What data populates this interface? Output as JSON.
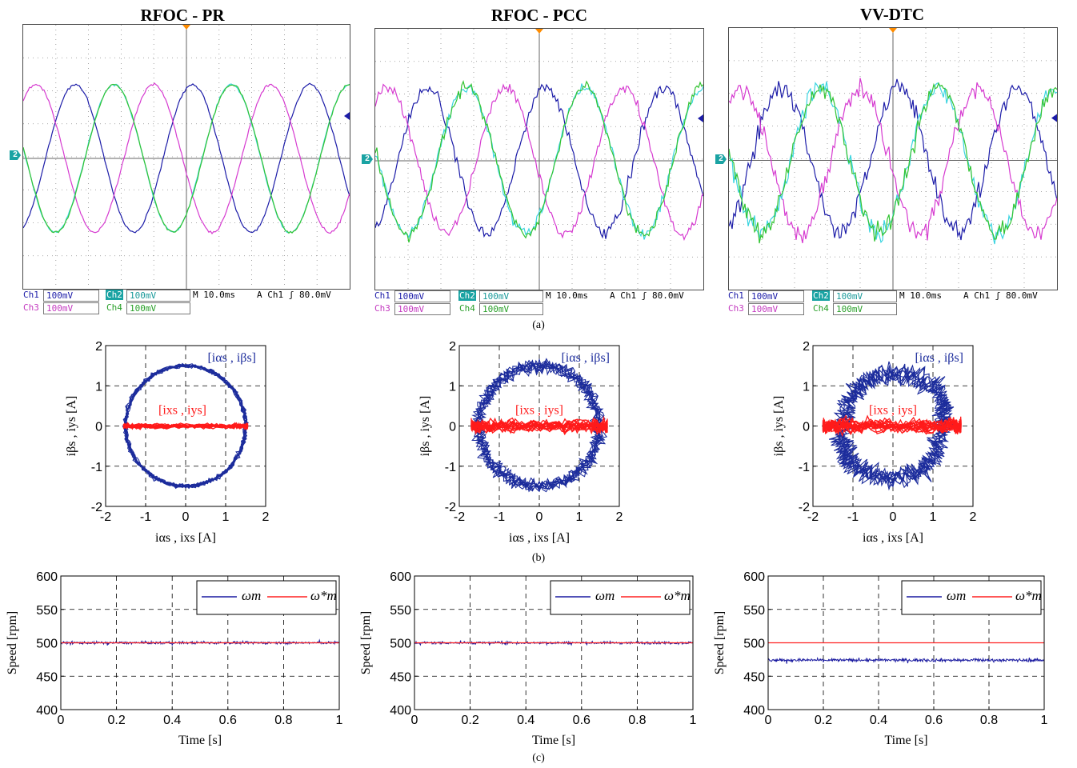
{
  "subfigure_labels": [
    "(a)",
    "(b)",
    "(c)"
  ],
  "scope_panels": [
    {
      "title": "RFOC - PR",
      "status": {
        "ch1": "Ch1",
        "ch1_value": "100mV",
        "ch2": "Ch2",
        "ch2_value": "100mV",
        "ch3": "Ch3",
        "ch3_value": "100mV",
        "ch4": "Ch4",
        "ch4_value": "100mV",
        "timebase": "M 10.0ms",
        "trigger": "A  Ch1  ʃ  80.0mV"
      },
      "ground_marker": "2"
    },
    {
      "title": "RFOC - PCC",
      "status": {
        "ch1": "Ch1",
        "ch1_value": "100mV",
        "ch2": "Ch2",
        "ch2_value": "100mV",
        "ch3": "Ch3",
        "ch3_value": "100mV",
        "ch4": "Ch4",
        "ch4_value": "100mV",
        "timebase": "M 10.0ms",
        "trigger": "A  Ch1  ʃ  80.0mV"
      },
      "ground_marker": "2"
    },
    {
      "title": "VV-DTC",
      "status": {
        "ch1": "Ch1",
        "ch1_value": "100mV",
        "ch2": "Ch2",
        "ch2_value": "100mV",
        "ch3": "Ch3",
        "ch3_value": "100mV",
        "ch4": "Ch4",
        "ch4_value": "100mV",
        "timebase": "M 10.0ms",
        "trigger": "A  Ch1  ʃ  80.0mV"
      },
      "ground_marker": "2"
    }
  ],
  "colors": {
    "ch1": "#1c1ca8",
    "ch2": "#33c433",
    "ch3": "#d63bd0",
    "ch4": "#3ad4e0",
    "scope_grid": "#8a8a8a",
    "orbit_blue": "#1c2c9c",
    "orbit_red": "#ff1a1a",
    "speed_blue": "#1a1aa0",
    "speed_red": "#ff2020"
  },
  "chart_data": [
    {
      "type": "scatter",
      "panel": "(b) RFOC - PR",
      "xlabel": "i_αs , i_xs [A]",
      "ylabel": "i_βs , i_ys [A]",
      "xlim": [
        -2,
        2
      ],
      "ylim": [
        -2,
        2
      ],
      "xticks": [
        "-2",
        "-1",
        "0",
        "1",
        "2"
      ],
      "yticks": [
        "-2",
        "-1",
        "0",
        "1",
        "2"
      ],
      "grid": true,
      "series": [
        {
          "name": "[i_αs , i_βs]",
          "shape": "circle",
          "amplitude": 1.5,
          "ripple": 0.04
        },
        {
          "name": "[i_xs , i_ys]",
          "shape": "horizontal-line",
          "x_range": [
            -1.55,
            1.55
          ],
          "y_ripple": 0.06
        }
      ],
      "legend_placement": "annotations"
    },
    {
      "type": "scatter",
      "panel": "(b) RFOC - PCC",
      "xlabel": "i_αs , i_xs [A]",
      "ylabel": "i_βs , i_ys [A]",
      "xlim": [
        -2,
        2
      ],
      "ylim": [
        -2,
        2
      ],
      "xticks": [
        "-2",
        "-1",
        "0",
        "1",
        "2"
      ],
      "yticks": [
        "-2",
        "-1",
        "0",
        "1",
        "2"
      ],
      "grid": true,
      "series": [
        {
          "name": "[i_αs , i_βs]",
          "shape": "circle",
          "amplitude": 1.5,
          "ripple": 0.12
        },
        {
          "name": "[i_xs , i_ys]",
          "shape": "horizontal-line",
          "x_range": [
            -1.7,
            1.7
          ],
          "y_ripple": 0.15
        }
      ],
      "legend_placement": "annotations"
    },
    {
      "type": "scatter",
      "panel": "(b) VV-DTC",
      "xlabel": "i_αs , i_xs [A]",
      "ylabel": "i_βs , i_ys [A]",
      "xlim": [
        -2,
        2
      ],
      "ylim": [
        -2,
        2
      ],
      "xticks": [
        "-2",
        "-1",
        "0",
        "1",
        "2"
      ],
      "yticks": [
        "-2",
        "-1",
        "0",
        "1",
        "2"
      ],
      "grid": true,
      "series": [
        {
          "name": "[i_αs , i_βs]",
          "shape": "circle",
          "amplitude": 1.4,
          "ripple": 0.22
        },
        {
          "name": "[i_xs , i_ys]",
          "shape": "horizontal-line",
          "x_range": [
            -1.75,
            1.7
          ],
          "y_ripple": 0.18
        }
      ],
      "legend_placement": "annotations"
    },
    {
      "type": "line",
      "panel": "(c) RFOC - PR",
      "xlabel": "Time [s]",
      "ylabel": "Speed [rpm]",
      "xlim": [
        0,
        1
      ],
      "ylim": [
        400,
        600
      ],
      "xticks": [
        "0",
        "0.2",
        "0.4",
        "0.6",
        "0.8",
        "1"
      ],
      "yticks": [
        "400",
        "450",
        "500",
        "550",
        "600"
      ],
      "grid": true,
      "series": [
        {
          "name": "ω_m",
          "mean": 500,
          "noise": 2
        },
        {
          "name": "ω*_m",
          "value": 500
        }
      ],
      "legend_placement": "top-right"
    },
    {
      "type": "line",
      "panel": "(c) RFOC - PCC",
      "xlabel": "Time [s]",
      "ylabel": "Speed [rpm]",
      "xlim": [
        0,
        1
      ],
      "ylim": [
        400,
        600
      ],
      "xticks": [
        "0",
        "0.2",
        "0.4",
        "0.6",
        "0.8",
        "1"
      ],
      "yticks": [
        "400",
        "450",
        "500",
        "550",
        "600"
      ],
      "grid": true,
      "series": [
        {
          "name": "ω_m",
          "mean": 500,
          "noise": 2
        },
        {
          "name": "ω*_m",
          "value": 500
        }
      ],
      "legend_placement": "top-right"
    },
    {
      "type": "line",
      "panel": "(c) VV-DTC",
      "xlabel": "Time [s]",
      "ylabel": "Speed [rpm]",
      "xlim": [
        0,
        1
      ],
      "ylim": [
        400,
        600
      ],
      "xticks": [
        "0",
        "0.2",
        "0.4",
        "0.6",
        "0.8",
        "1"
      ],
      "yticks": [
        "400",
        "450",
        "500",
        "550",
        "600"
      ],
      "grid": true,
      "series": [
        {
          "name": "ω_m",
          "mean": 474,
          "noise": 2.5
        },
        {
          "name": "ω*_m",
          "value": 500
        }
      ],
      "legend_placement": "top-right"
    }
  ]
}
